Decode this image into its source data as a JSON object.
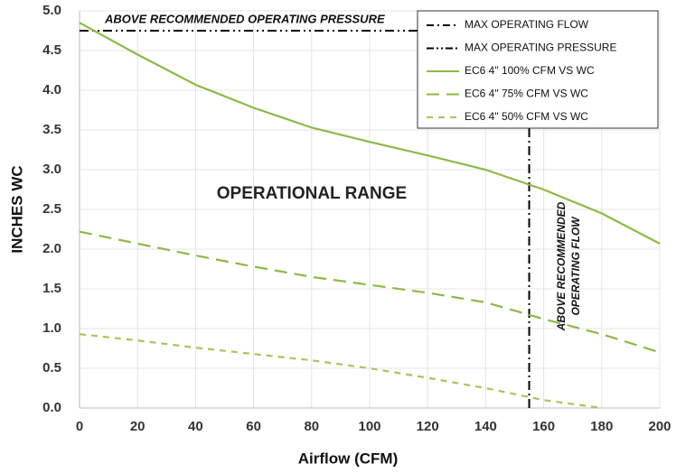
{
  "chart_data": {
    "type": "line",
    "xlabel": "Airflow (CFM)",
    "ylabel": "INCHES WC",
    "x": [
      0,
      20,
      40,
      60,
      80,
      100,
      120,
      140,
      160,
      180,
      200
    ],
    "series": [
      {
        "name": "EC6 4\" 100%  CFM VS WC",
        "color": "#8db84a",
        "dash": "solid",
        "values": [
          4.85,
          4.45,
          4.07,
          3.78,
          3.53,
          3.35,
          3.18,
          3.0,
          2.75,
          2.45,
          2.07
        ]
      },
      {
        "name": "EC6 4\" 75% CFM VS WC",
        "color": "#8db84a",
        "dash": "long",
        "values": [
          2.22,
          2.07,
          1.92,
          1.78,
          1.65,
          1.55,
          1.45,
          1.33,
          1.12,
          0.93,
          0.7
        ]
      },
      {
        "name": "EC6 4\" 50% CFM VS WC",
        "color": "#a4c65e",
        "dash": "short",
        "values": [
          0.93,
          0.85,
          0.76,
          0.68,
          0.6,
          0.5,
          0.38,
          0.25,
          0.1,
          0.0,
          null
        ]
      }
    ],
    "reference_lines": [
      {
        "name": "MAX OPERATING FLOW",
        "axis": "x",
        "value": 155,
        "color": "#000000"
      },
      {
        "name": "MAX OPERATING PRESSURE",
        "axis": "y",
        "value": 4.75,
        "color": "#000000"
      }
    ],
    "annotations": [
      "ABOVE RECOMMENDED OPERATING PRESSURE",
      "OPERATIONAL RANGE",
      "ABOVE RECOMMENDED",
      "OPERATING FLOW"
    ],
    "xlim": [
      0,
      200
    ],
    "xticks": [
      0,
      20,
      40,
      60,
      80,
      100,
      120,
      140,
      160,
      180,
      200
    ],
    "ylim": [
      0,
      5
    ],
    "yticks": [
      {
        "value": 0,
        "label": "0.0"
      },
      0.5,
      {
        "value": 1,
        "label": "1.0"
      },
      1.5,
      {
        "value": 2,
        "label": "2.0"
      },
      2.5,
      {
        "value": 3,
        "label": "3.0"
      },
      3.5,
      {
        "value": 4,
        "label": "4.0"
      },
      4.5,
      {
        "value": 5,
        "label": "5.0"
      }
    ],
    "grid": true,
    "legend": "upper right"
  }
}
